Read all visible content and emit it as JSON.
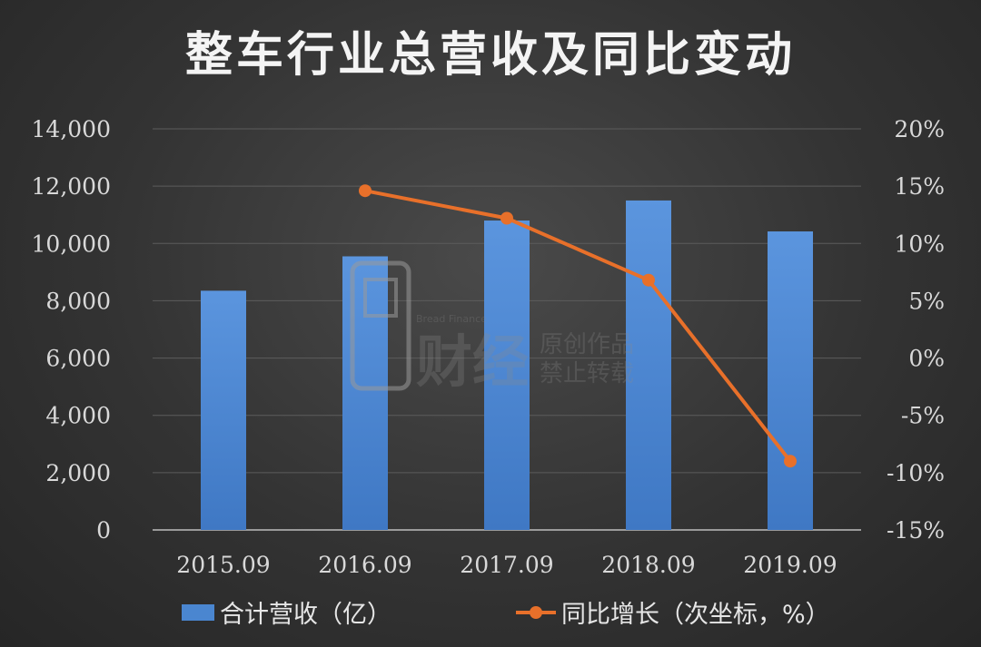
{
  "chart_data": {
    "type": "bar",
    "title": "整车行业总营收及同比变动",
    "categories": [
      "2015.09",
      "2016.09",
      "2017.09",
      "2018.09",
      "2019.09"
    ],
    "series": [
      {
        "name": "合计营收（亿）",
        "type": "bar",
        "axis": "left",
        "values": [
          8350,
          9550,
          10800,
          11500,
          10420
        ],
        "color": "#4a86d0"
      },
      {
        "name": "同比增长（次坐标，%）",
        "type": "line",
        "axis": "right",
        "values": [
          null,
          14.6,
          12.2,
          6.8,
          -9.0
        ],
        "color": "#e8702a"
      }
    ],
    "y_left": {
      "range": [
        0,
        14000
      ],
      "ticks": [
        0,
        2000,
        4000,
        6000,
        8000,
        10000,
        12000,
        14000
      ],
      "tick_labels": [
        "0",
        "2,000",
        "4,000",
        "6,000",
        "8,000",
        "10,000",
        "12,000",
        "14,000"
      ]
    },
    "y_right": {
      "range": [
        -15,
        20
      ],
      "ticks": [
        -15,
        -10,
        -5,
        0,
        5,
        10,
        15,
        20
      ],
      "tick_labels": [
        "-15%",
        "-10%",
        "-5%",
        "0%",
        "5%",
        "10%",
        "15%",
        "20%"
      ]
    },
    "grid": true,
    "legend_position": "bottom"
  },
  "watermark": {
    "icon": "bread-logo-icon",
    "brand_en": "Bread Finance",
    "brand_cn": "财经",
    "line1": "原创作品",
    "line2": "禁止转载"
  }
}
